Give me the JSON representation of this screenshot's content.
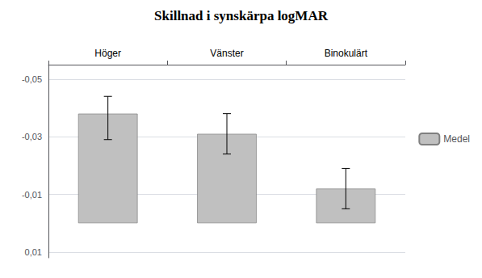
{
  "chart_data": {
    "type": "bar",
    "title": "Skillnad i synskärpa logMAR",
    "categories": [
      "Höger",
      "Vänster",
      "Binokulärt"
    ],
    "series": [
      {
        "name": "Medel",
        "color": "#c0c0c0",
        "values": [
          -0.038,
          -0.031,
          -0.012
        ],
        "errors_upper": [
          0.009,
          0.007,
          0.007
        ],
        "errors_lower": [
          0.006,
          0.007,
          0.007
        ]
      }
    ],
    "ylim": [
      0.012,
      -0.055
    ],
    "yticks": [
      {
        "value": -0.05,
        "label": "-0,05"
      },
      {
        "value": -0.03,
        "label": "-0,03"
      },
      {
        "value": -0.01,
        "label": "-0,01"
      },
      {
        "value": 0.01,
        "label": "0,01"
      }
    ],
    "grid": true,
    "legend": "right"
  }
}
